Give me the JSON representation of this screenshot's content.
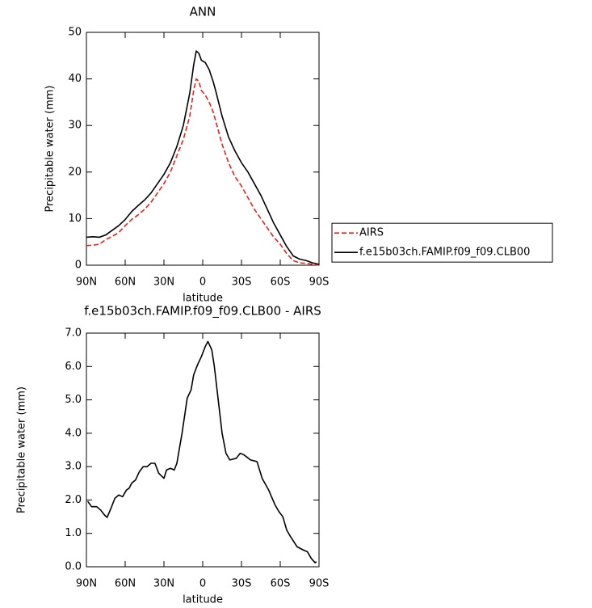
{
  "chart_data": [
    {
      "type": "line",
      "title": "ANN",
      "x_label": "latitude",
      "y_label": "Precipitable water (mm)",
      "x": [
        90,
        85,
        80,
        75,
        70,
        65,
        60,
        55,
        50,
        45,
        40,
        35,
        30,
        25,
        20,
        15,
        10,
        7,
        5,
        3,
        1,
        -2,
        -5,
        -8,
        -10,
        -15,
        -20,
        -25,
        -30,
        -35,
        -40,
        -45,
        -50,
        -55,
        -60,
        -65,
        -70,
        -75,
        -80,
        -85,
        -90
      ],
      "series": [
        {
          "name": "AIRS",
          "color": "#e8201e",
          "dash": true,
          "values": [
            4.2,
            4.3,
            4.5,
            5.5,
            6.2,
            7.0,
            8.5,
            9.8,
            10.8,
            12.0,
            13.5,
            15.5,
            17.5,
            20.0,
            23.5,
            27.0,
            32.0,
            37.5,
            40.0,
            39.5,
            37.5,
            36.5,
            35.0,
            33.0,
            31.0,
            26.0,
            22.0,
            19.0,
            17.0,
            14.5,
            12.0,
            10.0,
            8.0,
            6.0,
            4.5,
            2.5,
            1.0,
            0.5,
            0.4,
            0.2,
            0.0
          ]
        },
        {
          "name": "f.e15b03ch.FAMIP.f09_f09.CLB00",
          "color": "#000000",
          "dash": false,
          "values": [
            6.0,
            6.1,
            6.0,
            6.5,
            7.5,
            8.5,
            9.8,
            11.5,
            12.8,
            14.0,
            15.5,
            17.5,
            19.5,
            22.0,
            25.5,
            30.0,
            37.0,
            43.0,
            46.0,
            45.5,
            44.0,
            43.5,
            42.0,
            39.5,
            37.5,
            32.0,
            27.5,
            24.5,
            22.0,
            20.0,
            17.5,
            15.0,
            12.0,
            9.0,
            6.5,
            4.0,
            2.0,
            1.3,
            1.0,
            0.5,
            0.2
          ]
        }
      ],
      "xlim": [
        90,
        -90
      ],
      "xticks": [
        {
          "value": 90,
          "label": "90N"
        },
        {
          "value": 60,
          "label": "60N"
        },
        {
          "value": 30,
          "label": "30N"
        },
        0,
        {
          "value": -30,
          "label": "30S"
        },
        {
          "value": -60,
          "label": "60S"
        },
        {
          "value": -90,
          "label": "90S"
        }
      ],
      "ylim": [
        0,
        50
      ],
      "yticks": [
        0,
        10,
        20,
        30,
        40,
        50
      ],
      "grid": false,
      "legend": "right"
    },
    {
      "type": "line",
      "title": "f.e15b03ch.FAMIP.f09_f09.CLB00 - AIRS",
      "x_label": "latitude",
      "y_label": "Precipitable water (mm)",
      "x": [
        89,
        86,
        82,
        79,
        76,
        74,
        71,
        68,
        65,
        62,
        59,
        57,
        55,
        52,
        49,
        46,
        43,
        40,
        37,
        34,
        30,
        28,
        25,
        22,
        20,
        16,
        12,
        9,
        7,
        4,
        1,
        -2,
        -4,
        -7,
        -9,
        -12,
        -15,
        -18,
        -21,
        -26,
        -29,
        -32,
        -37,
        -42,
        -46,
        -51,
        -56,
        -59,
        -62,
        -65,
        -68,
        -73,
        -78,
        -81,
        -84,
        -87,
        -88
      ],
      "series": [
        {
          "color": "#000000",
          "dash": false,
          "values": [
            1.96,
            1.8,
            1.8,
            1.7,
            1.55,
            1.48,
            1.75,
            2.05,
            2.15,
            2.1,
            2.3,
            2.35,
            2.5,
            2.6,
            2.85,
            3.0,
            3.0,
            3.1,
            3.1,
            2.8,
            2.65,
            2.9,
            2.95,
            2.9,
            3.1,
            4.0,
            5.05,
            5.3,
            5.75,
            6.05,
            6.3,
            6.6,
            6.75,
            6.5,
            6.0,
            5.0,
            4.0,
            3.4,
            3.2,
            3.25,
            3.4,
            3.35,
            3.2,
            3.15,
            2.65,
            2.3,
            1.85,
            1.65,
            1.5,
            1.1,
            0.9,
            0.6,
            0.5,
            0.45,
            0.25,
            0.12,
            0.15
          ]
        }
      ],
      "xlim": [
        90,
        -90
      ],
      "xticks": [
        {
          "value": 90,
          "label": "90N"
        },
        {
          "value": 60,
          "label": "60N"
        },
        {
          "value": 30,
          "label": "30N"
        },
        0,
        {
          "value": -30,
          "label": "30S"
        },
        {
          "value": -60,
          "label": "60S"
        },
        {
          "value": -90,
          "label": "90S"
        }
      ],
      "ylim": [
        0,
        7
      ],
      "yticks": [
        {
          "value": 0,
          "label": "0.0"
        },
        {
          "value": 1,
          "label": "1.0"
        },
        {
          "value": 2,
          "label": "2.0"
        },
        {
          "value": 3,
          "label": "3.0"
        },
        {
          "value": 4,
          "label": "4.0"
        },
        {
          "value": 5,
          "label": "5.0"
        },
        {
          "value": 6,
          "label": "6.0"
        },
        {
          "value": 7,
          "label": "7.0"
        }
      ],
      "grid": false,
      "legend": false
    }
  ]
}
